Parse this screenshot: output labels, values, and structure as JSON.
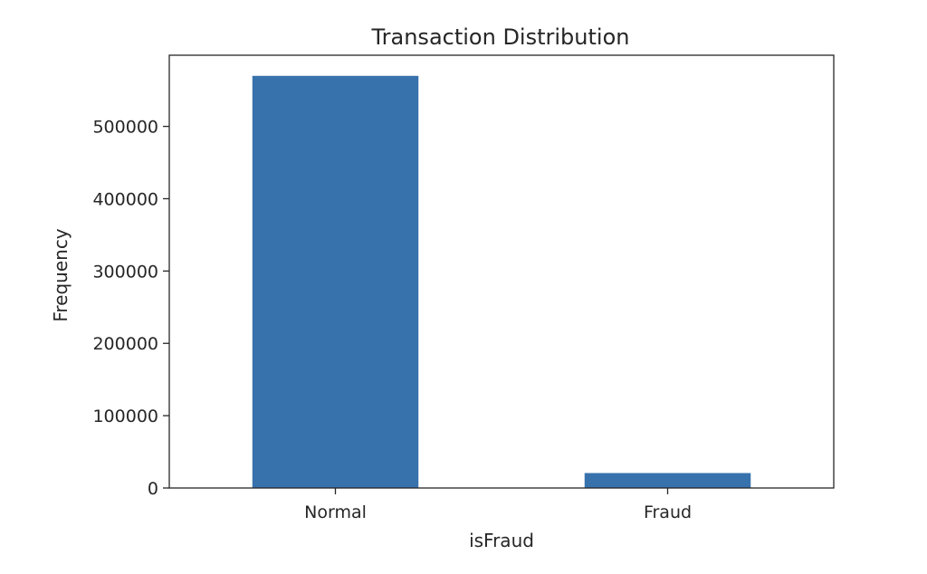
{
  "chart_data": {
    "type": "bar",
    "title": "Transaction Distribution",
    "xlabel": "isFraud",
    "ylabel": "Frequency",
    "categories": [
      "Normal",
      "Fraud"
    ],
    "values": [
      569877,
      20663
    ],
    "ylim": [
      0,
      598400
    ],
    "yticks": [
      0,
      100000,
      200000,
      300000,
      400000,
      500000
    ],
    "ytick_labels": [
      "0",
      "100000",
      "200000",
      "300000",
      "400000",
      "500000"
    ],
    "grid": false,
    "legend": "none",
    "bar_color": "#3872ad"
  }
}
